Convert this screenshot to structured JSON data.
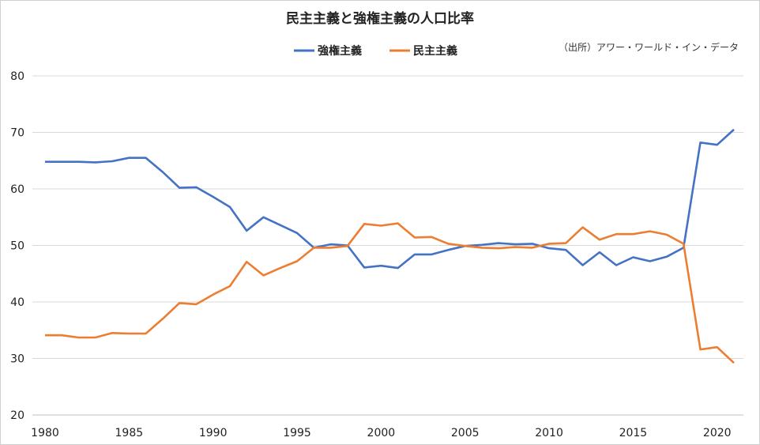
{
  "chart_data": {
    "type": "line",
    "title": "民主主義と強権主義の人口比率",
    "source": "（出所）アワー・ワールド・イン・データ",
    "xlabel": "",
    "ylabel": "",
    "xlim": [
      1980,
      2021
    ],
    "ylim": [
      20,
      80
    ],
    "x_ticks": [
      1980,
      1985,
      1990,
      1995,
      2000,
      2005,
      2010,
      2015,
      2020
    ],
    "y_ticks": [
      20,
      30,
      40,
      50,
      60,
      70,
      80
    ],
    "grid": "horizontal",
    "legend_position": "top-center",
    "x": [
      1980,
      1981,
      1982,
      1983,
      1984,
      1985,
      1986,
      1987,
      1988,
      1989,
      1990,
      1991,
      1992,
      1993,
      1994,
      1995,
      1996,
      1997,
      1998,
      1999,
      2000,
      2001,
      2002,
      2003,
      2004,
      2005,
      2006,
      2007,
      2008,
      2009,
      2010,
      2011,
      2012,
      2013,
      2014,
      2015,
      2016,
      2017,
      2018,
      2019,
      2020,
      2021
    ],
    "series": [
      {
        "name": "強権主義",
        "color": "#4472C4",
        "values": [
          64.8,
          64.8,
          64.8,
          64.7,
          64.9,
          65.5,
          65.5,
          63.0,
          60.2,
          60.3,
          58.6,
          56.8,
          52.6,
          55.0,
          53.6,
          52.2,
          49.6,
          50.2,
          50.0,
          46.1,
          46.4,
          46.0,
          48.4,
          48.4,
          49.2,
          49.9,
          50.1,
          50.4,
          50.2,
          50.3,
          49.5,
          49.2,
          46.5,
          48.8,
          46.5,
          47.9,
          47.2,
          48.0,
          49.6,
          68.2,
          67.8,
          70.5
        ]
      },
      {
        "name": "民主主義",
        "color": "#ED7D31",
        "values": [
          34.1,
          34.1,
          33.7,
          33.7,
          34.5,
          34.4,
          34.4,
          37.0,
          39.8,
          39.6,
          41.3,
          42.8,
          47.1,
          44.7,
          46.0,
          47.2,
          49.6,
          49.6,
          49.9,
          53.8,
          53.5,
          53.9,
          51.4,
          51.5,
          50.3,
          49.9,
          49.6,
          49.5,
          49.7,
          49.6,
          50.3,
          50.4,
          53.2,
          51.0,
          52.0,
          52.0,
          52.5,
          51.9,
          50.3,
          31.6,
          32.0,
          29.2
        ]
      }
    ]
  }
}
